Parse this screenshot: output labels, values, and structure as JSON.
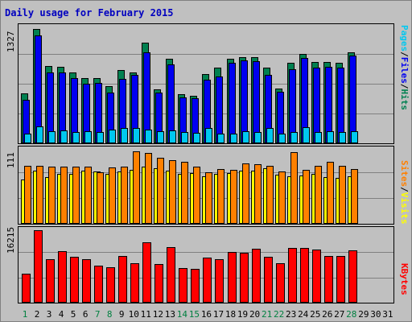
{
  "title": "Daily usage for February 2015",
  "colors": {
    "pages": "#00c8f0",
    "files": "#0000f0",
    "hits": "#008050",
    "visits": "#ffff00",
    "sites": "#ff8000",
    "kbytes": "#ff0000",
    "background": "#c0c0c0",
    "title": "#0000c0",
    "weekday_label": "#008040",
    "weekend_label": "#000000",
    "future_label": "#000000"
  },
  "labels": {
    "top_panel": [
      "Pages",
      "Files",
      "Hits"
    ],
    "middle_panel": [
      "Sites",
      "Visits"
    ],
    "bottom_panel": [
      "KBytes"
    ]
  },
  "chart_data": [
    {
      "type": "bar",
      "title": "Daily usage for February 2015",
      "panel": "hits-files-pages",
      "categories": [
        "1",
        "2",
        "3",
        "4",
        "5",
        "6",
        "7",
        "8",
        "9",
        "10",
        "11",
        "12",
        "13",
        "14",
        "15",
        "16",
        "17",
        "18",
        "19",
        "20",
        "21",
        "22",
        "23",
        "24",
        "25",
        "26",
        "27",
        "28",
        "29",
        "30",
        "31"
      ],
      "ymax_label": "1327",
      "ylim": [
        0,
        1327
      ],
      "grid": true,
      "series": [
        {
          "name": "Hits",
          "values": [
            580,
            1327,
            900,
            890,
            820,
            760,
            760,
            660,
            850,
            820,
            1170,
            630,
            980,
            570,
            550,
            800,
            880,
            980,
            1000,
            1000,
            880,
            640,
            930,
            1040,
            940,
            940,
            930,
            1060,
            0,
            0,
            0
          ]
        },
        {
          "name": "Files",
          "values": [
            500,
            1250,
            820,
            820,
            760,
            690,
            700,
            590,
            750,
            790,
            1060,
            590,
            920,
            530,
            520,
            740,
            780,
            930,
            960,
            950,
            790,
            600,
            860,
            990,
            880,
            890,
            880,
            1020,
            0,
            0,
            0
          ]
        },
        {
          "name": "Pages",
          "values": [
            110,
            200,
            140,
            150,
            130,
            140,
            130,
            160,
            180,
            180,
            160,
            140,
            150,
            130,
            120,
            180,
            110,
            110,
            140,
            130,
            180,
            110,
            130,
            190,
            130,
            140,
            130,
            140,
            0,
            0,
            0
          ]
        }
      ]
    },
    {
      "type": "bar",
      "panel": "sites-visits",
      "categories": [
        "1",
        "2",
        "3",
        "4",
        "5",
        "6",
        "7",
        "8",
        "9",
        "10",
        "11",
        "12",
        "13",
        "14",
        "15",
        "16",
        "17",
        "18",
        "19",
        "20",
        "21",
        "22",
        "23",
        "24",
        "25",
        "26",
        "27",
        "28",
        "29",
        "30",
        "31"
      ],
      "ymax_label": "111",
      "ylim": [
        0,
        111
      ],
      "grid": true,
      "series": [
        {
          "name": "Sites",
          "values": [
            89,
            89,
            88,
            88,
            88,
            88,
            79,
            86,
            87,
            111,
            109,
            101,
            97,
            95,
            87,
            79,
            84,
            83,
            93,
            91,
            89,
            80,
            110,
            83,
            89,
            95,
            89,
            84,
            0,
            0,
            0
          ]
        },
        {
          "name": "Visits",
          "values": [
            68,
            81,
            72,
            76,
            77,
            81,
            80,
            77,
            80,
            83,
            87,
            85,
            82,
            76,
            78,
            73,
            76,
            78,
            81,
            82,
            85,
            75,
            73,
            74,
            76,
            72,
            70,
            73,
            0,
            0,
            0
          ]
        }
      ]
    },
    {
      "type": "bar",
      "panel": "kbytes",
      "categories": [
        "1",
        "2",
        "3",
        "4",
        "5",
        "6",
        "7",
        "8",
        "9",
        "10",
        "11",
        "12",
        "13",
        "14",
        "15",
        "16",
        "17",
        "18",
        "19",
        "20",
        "21",
        "22",
        "23",
        "24",
        "25",
        "26",
        "27",
        "28",
        "29",
        "30",
        "31"
      ],
      "ymax_label": "16215",
      "ylim": [
        0,
        16215
      ],
      "grid": true,
      "series": [
        {
          "name": "KBytes",
          "values": [
            6500,
            16215,
            9800,
            11600,
            10300,
            9800,
            8200,
            8000,
            10400,
            8900,
            13500,
            8700,
            12500,
            7800,
            7500,
            10100,
            9800,
            11300,
            11200,
            12000,
            10200,
            8800,
            12200,
            12200,
            11900,
            10500,
            10500,
            11800,
            0,
            0,
            0
          ]
        }
      ]
    }
  ]
}
